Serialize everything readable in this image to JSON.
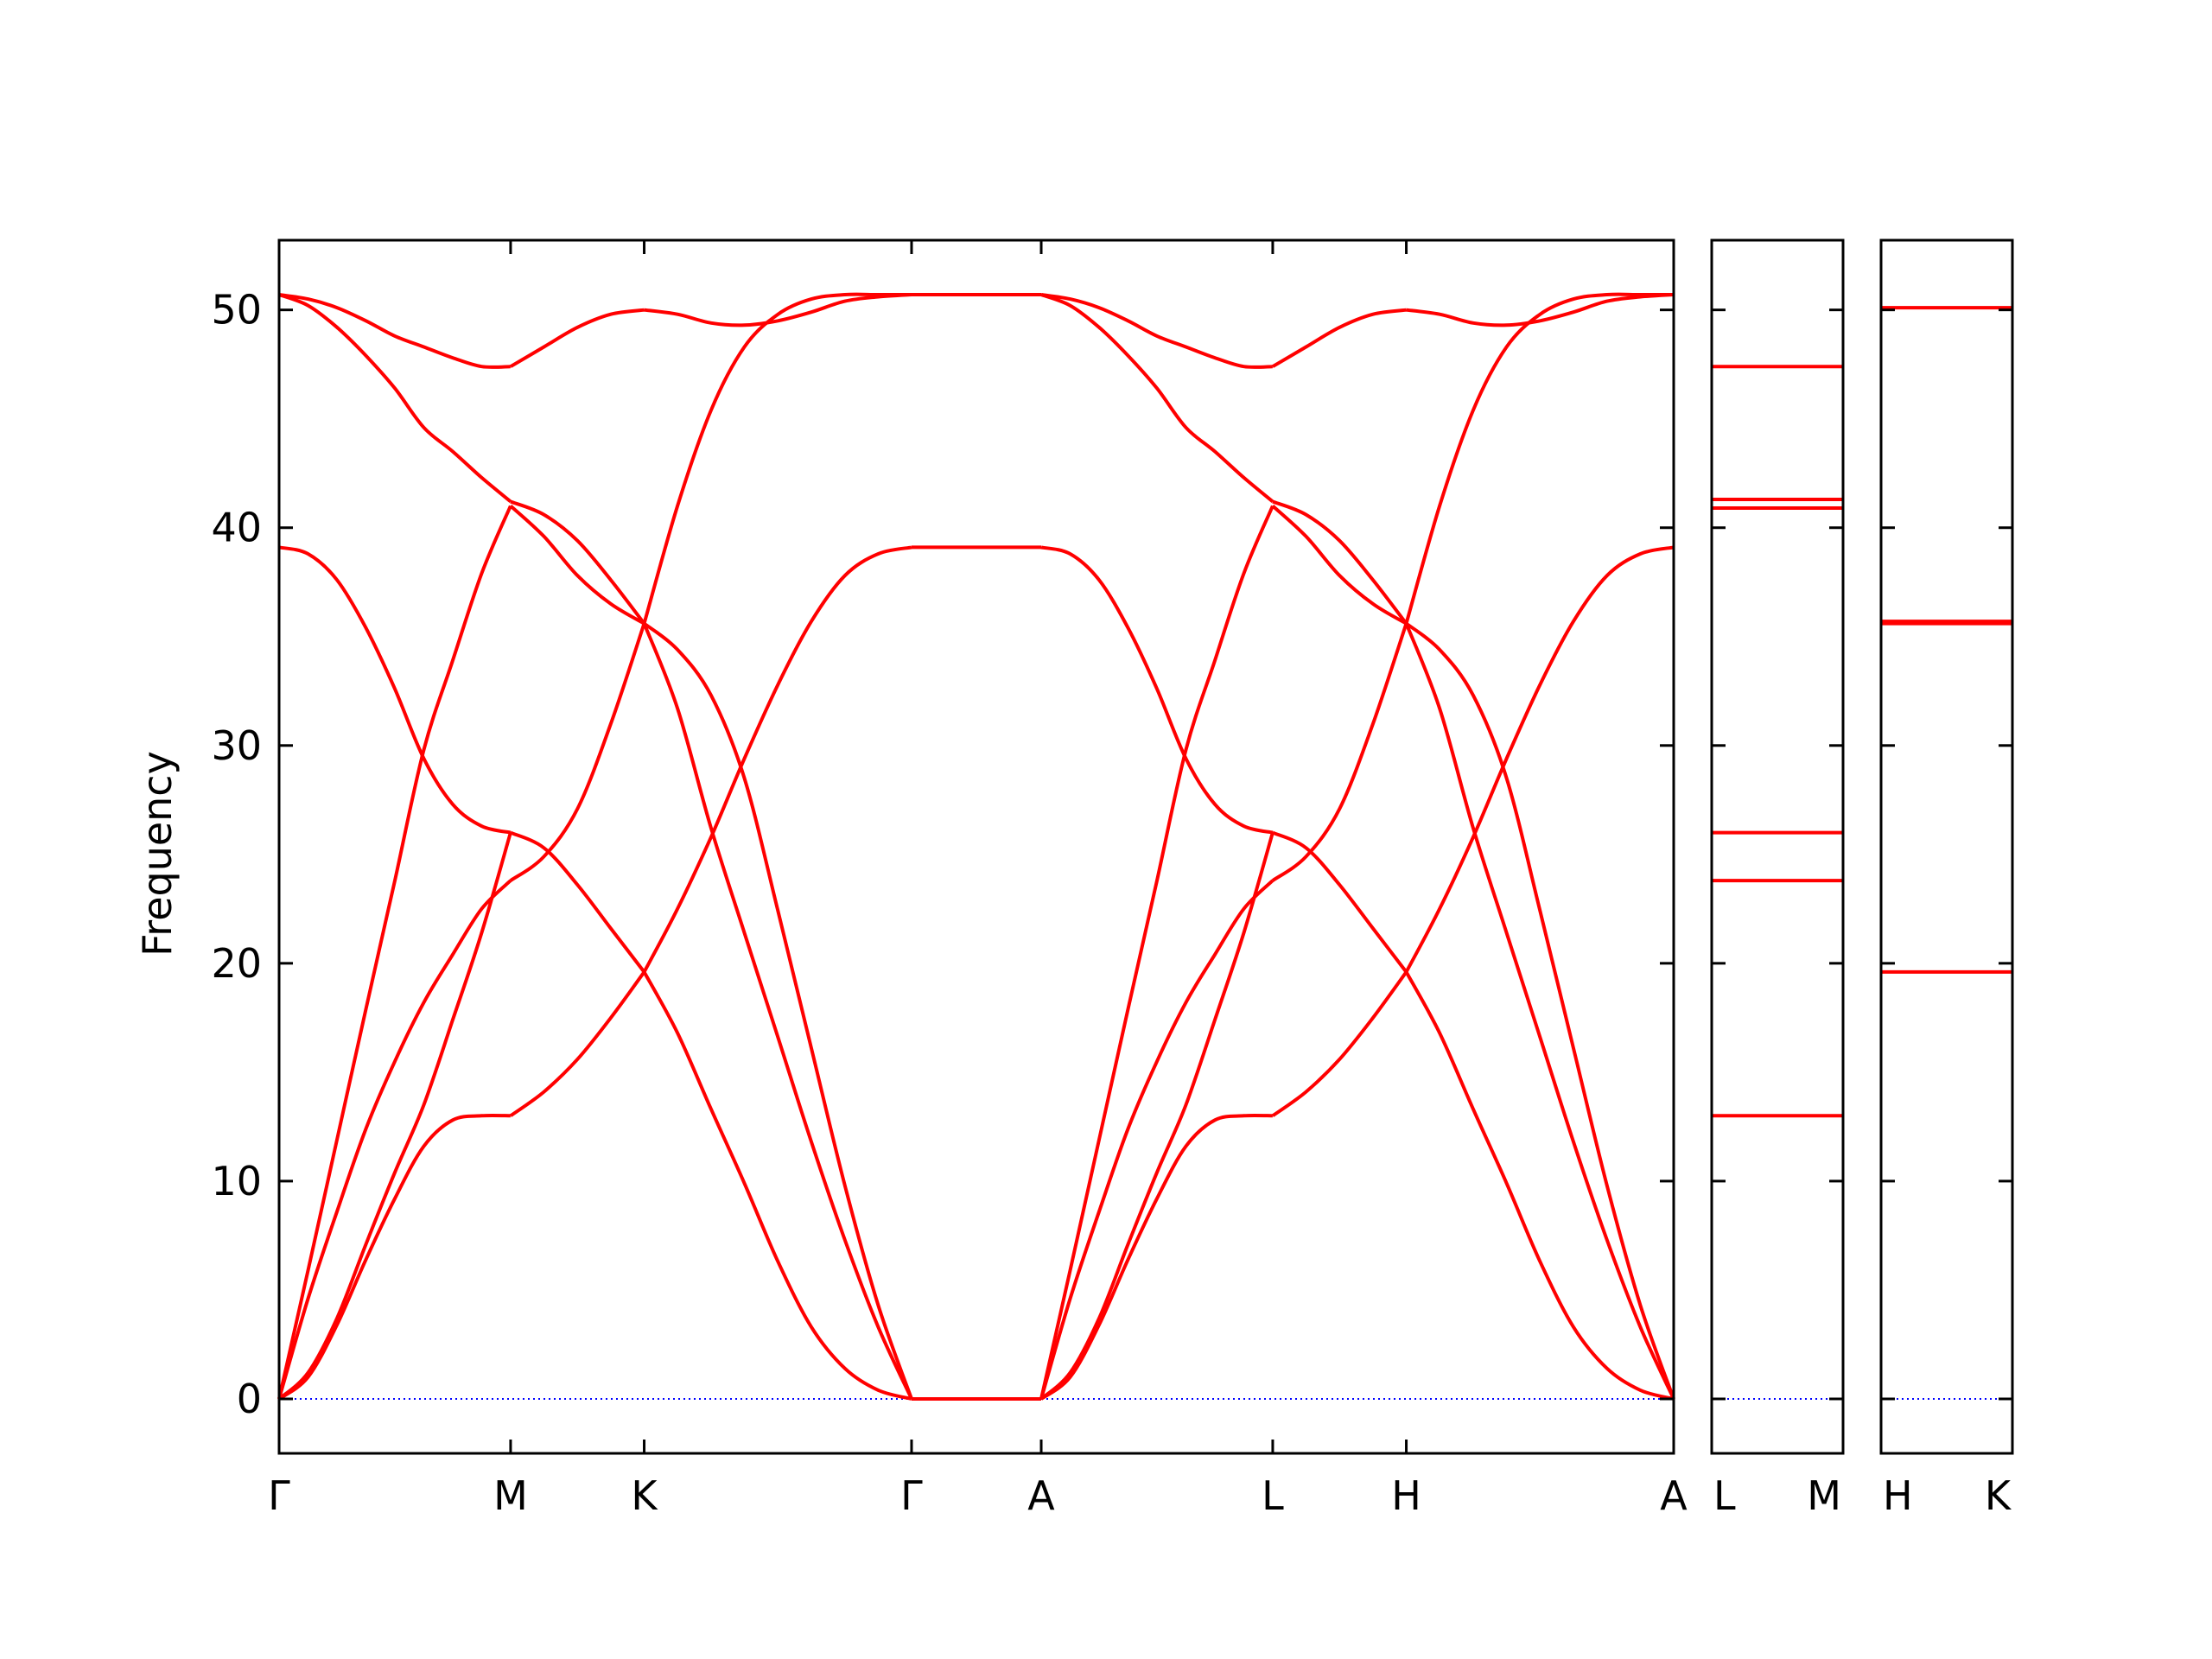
{
  "chart_data": {
    "type": "line",
    "title": "",
    "ylabel": "Frequency",
    "ylim": [
      -2.5,
      53.2
    ],
    "yticks": [
      0,
      10,
      20,
      30,
      40,
      50
    ],
    "colors": {
      "bands": "#ff0000",
      "zero_line": "#0000ff",
      "axes": "#000000"
    },
    "zero_line_style": "dotted",
    "panels": [
      {
        "id": "main",
        "xticks": [
          {
            "x": 0.0,
            "label": "Γ"
          },
          {
            "x": 1.0,
            "label": "M"
          },
          {
            "x": 1.577,
            "label": "K"
          },
          {
            "x": 2.732,
            "label": "Γ"
          },
          {
            "x": 3.292,
            "label": "A"
          },
          {
            "x": 4.292,
            "label": "L"
          },
          {
            "x": 4.869,
            "label": "H"
          },
          {
            "x": 6.024,
            "label": "A"
          }
        ],
        "branches": [
          {
            "name": "Γ-M",
            "x": [
              0.0,
              0.125,
              0.25,
              0.375,
              0.5,
              0.625,
              0.75,
              0.875,
              1.0
            ],
            "bands": [
              [
                0,
                1.2,
                3.7,
                7.1,
                10.4,
                13.5,
                17.4,
                21.4,
                26.0
              ],
              [
                0,
                4.6,
                8.6,
                12.4,
                15.5,
                18.2,
                20.4,
                22.5,
                23.8
              ],
              [
                0,
                1.0,
                3.4,
                6.4,
                9.2,
                11.6,
                12.8,
                13.0,
                13.0
              ],
              [
                39.1,
                38.8,
                37.6,
                35.4,
                32.6,
                29.4,
                27.3,
                26.3,
                26.0
              ],
              [
                0,
                5.9,
                11.9,
                17.9,
                23.8,
                29.8,
                33.9,
                37.9,
                41.0
              ],
              [
                50.7,
                50.2,
                49.2,
                47.9,
                46.4,
                44.6,
                43.5,
                42.3,
                41.2
              ],
              [
                50.7,
                50.5,
                50.1,
                49.5,
                48.8,
                48.3,
                47.8,
                47.4,
                47.4
              ]
            ]
          },
          {
            "name": "M-K",
            "x": [
              1.0,
              1.144,
              1.289,
              1.433,
              1.577
            ],
            "bands": [
              [
                26.0,
                25.3,
                23.6,
                21.6,
                19.6
              ],
              [
                23.8,
                24.9,
                27.1,
                31.0,
                35.6
              ],
              [
                13.0,
                14.1,
                15.6,
                17.5,
                19.6
              ],
              [
                41.0,
                39.6,
                37.8,
                36.5,
                35.6
              ],
              [
                41.2,
                40.6,
                39.4,
                37.6,
                35.6
              ],
              [
                47.4,
                48.3,
                49.2,
                49.8,
                50.0
              ]
            ]
          },
          {
            "name": "K-Γ",
            "x": [
              1.577,
              1.721,
              1.866,
              2.01,
              2.155,
              2.299,
              2.444,
              2.588,
              2.732
            ],
            "bands": [
              [
                19.6,
                16.8,
                13.3,
                9.9,
                6.3,
                3.3,
                1.4,
                0.4,
                0
              ],
              [
                35.6,
                31.7,
                26.2,
                21.4,
                16.6,
                11.8,
                7.3,
                3.3,
                0
              ],
              [
                35.6,
                34.4,
                32.3,
                28.5,
                22.4,
                16.1,
                9.8,
                4.3,
                0
              ],
              [
                19.6,
                22.5,
                25.8,
                29.4,
                32.8,
                35.7,
                37.8,
                38.8,
                39.1
              ],
              [
                35.6,
                41.0,
                45.4,
                48.3,
                49.8,
                50.5,
                50.7,
                50.7,
                50.7
              ],
              [
                50.0,
                49.8,
                49.4,
                49.3,
                49.5,
                49.9,
                50.4,
                50.6,
                50.7
              ]
            ]
          },
          {
            "name": "Γ-A",
            "x": [
              2.732,
              3.292
            ],
            "bands": [
              [
                0,
                0
              ],
              [
                39.1,
                39.1
              ],
              [
                50.7,
                50.7
              ]
            ]
          },
          {
            "name": "A-L",
            "x": [
              3.292,
              3.417,
              3.542,
              3.667,
              3.792,
              3.917,
              4.042,
              4.167,
              4.292
            ],
            "bands": [
              [
                0,
                1.2,
                3.7,
                7.1,
                10.4,
                13.5,
                17.4,
                21.4,
                26.0
              ],
              [
                0,
                4.6,
                8.6,
                12.4,
                15.5,
                18.2,
                20.4,
                22.5,
                23.8
              ],
              [
                0,
                1.0,
                3.4,
                6.4,
                9.2,
                11.6,
                12.8,
                13.0,
                13.0
              ],
              [
                39.1,
                38.8,
                37.6,
                35.4,
                32.6,
                29.4,
                27.3,
                26.3,
                26.0
              ],
              [
                0,
                5.9,
                11.9,
                17.9,
                23.8,
                29.8,
                33.9,
                37.9,
                41.0
              ],
              [
                50.7,
                50.2,
                49.2,
                47.9,
                46.4,
                44.6,
                43.5,
                42.3,
                41.2
              ],
              [
                50.7,
                50.5,
                50.1,
                49.5,
                48.8,
                48.3,
                47.8,
                47.4,
                47.4
              ]
            ]
          },
          {
            "name": "L-H",
            "x": [
              4.292,
              4.436,
              4.581,
              4.725,
              4.869
            ],
            "bands": [
              [
                26.0,
                25.3,
                23.6,
                21.6,
                19.6
              ],
              [
                23.8,
                24.9,
                27.1,
                31.0,
                35.6
              ],
              [
                13.0,
                14.1,
                15.6,
                17.5,
                19.6
              ],
              [
                41.0,
                39.6,
                37.8,
                36.5,
                35.6
              ],
              [
                41.2,
                40.6,
                39.4,
                37.6,
                35.6
              ],
              [
                47.4,
                48.3,
                49.2,
                49.8,
                50.0
              ]
            ]
          },
          {
            "name": "H-A",
            "x": [
              4.869,
              5.013,
              5.158,
              5.302,
              5.447,
              5.591,
              5.736,
              5.88,
              6.024
            ],
            "bands": [
              [
                19.6,
                16.8,
                13.3,
                9.9,
                6.3,
                3.3,
                1.4,
                0.4,
                0
              ],
              [
                35.6,
                31.7,
                26.2,
                21.4,
                16.6,
                11.8,
                7.3,
                3.3,
                0
              ],
              [
                35.6,
                34.4,
                32.3,
                28.5,
                22.4,
                16.1,
                9.8,
                4.3,
                0
              ],
              [
                19.6,
                22.5,
                25.8,
                29.4,
                32.8,
                35.7,
                37.8,
                38.8,
                39.1
              ],
              [
                35.6,
                41.0,
                45.4,
                48.3,
                49.8,
                50.5,
                50.7,
                50.7,
                50.7
              ],
              [
                50.0,
                49.8,
                49.4,
                49.3,
                49.5,
                49.9,
                50.4,
                50.6,
                50.7
              ]
            ]
          }
        ]
      },
      {
        "id": "L-M",
        "xticks": [
          {
            "x": 0,
            "label": "L"
          },
          {
            "x": 1,
            "label": "M"
          }
        ],
        "flat_bands": [
          13.0,
          23.8,
          26.0,
          40.9,
          41.3,
          47.4
        ]
      },
      {
        "id": "H-K",
        "xticks": [
          {
            "x": 0,
            "label": "H"
          },
          {
            "x": 1,
            "label": "K"
          }
        ],
        "flat_bands": [
          19.6,
          35.6,
          35.7,
          50.1
        ]
      }
    ]
  }
}
